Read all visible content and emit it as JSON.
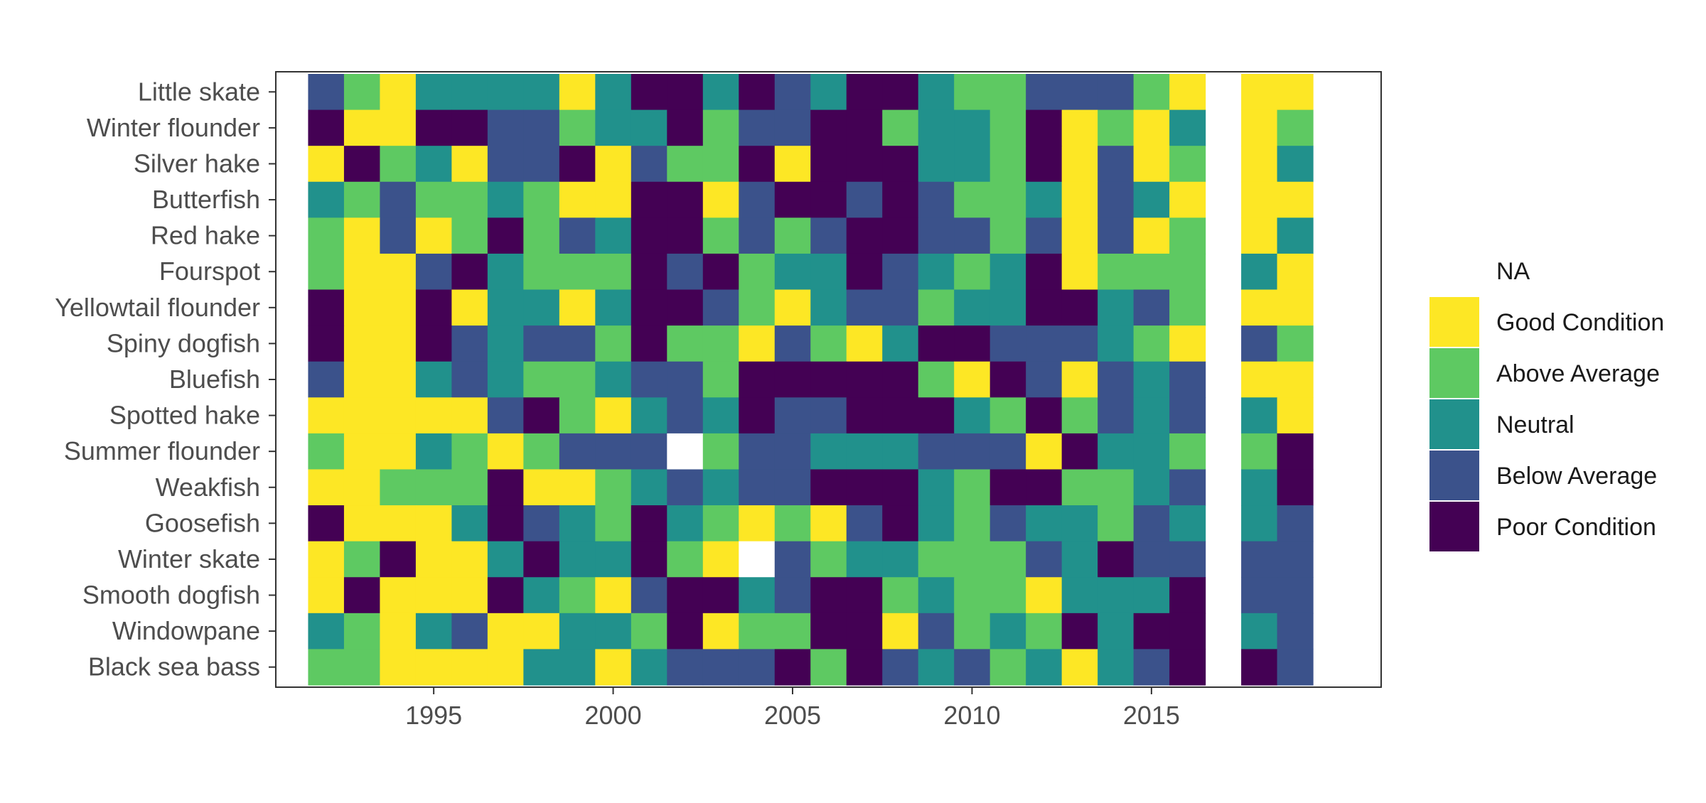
{
  "chart_data": {
    "type": "heatmap",
    "title": "",
    "xlabel": "",
    "ylabel": "",
    "x_ticks": [
      1995,
      2000,
      2005,
      2010,
      2015
    ],
    "x": [
      1992,
      1993,
      1994,
      1995,
      1996,
      1997,
      1998,
      1999,
      2000,
      2001,
      2002,
      2003,
      2004,
      2005,
      2006,
      2007,
      2008,
      2009,
      2010,
      2011,
      2012,
      2013,
      2014,
      2015,
      2016,
      2017,
      2018,
      2019
    ],
    "xlim": [
      1990.6,
      2021.4
    ],
    "species": [
      "Little skate",
      "Winter flounder",
      "Silver hake",
      "Butterfish",
      "Red hake",
      "Fourspot",
      "Yellowtail flounder",
      "Spiny dogfish",
      "Bluefish",
      "Spotted hake",
      "Summer flounder",
      "Weakfish",
      "Goosefish",
      "Winter skate",
      "Smooth dogfish",
      "Windowpane",
      "Black sea bass"
    ],
    "category_key": {
      "G": "Good Condition",
      "A": "Above Average",
      "N": "Neutral",
      "B": "Below Average",
      "P": "Poor Condition",
      "X": "NA",
      "-": "no data"
    },
    "rows": [
      "BAGNNNNGNPPNPBNPPNAABBBAG-GG",
      "PGGPPBBANNPABBPPANNAPGAGN-GA",
      "GPANGBBPGBAAPGPPPNNAPGBGA-GN",
      "NABAANAGGPPGBPPBPBAANGBNG-GG",
      "AGBGAPABNPPABABPPBBABGBGA-GN",
      "AGGBPNAAAPBPANNPBNANPGAAA-NG",
      "PGGPGNNGNPPBAGNBBANNPPNBA-GG",
      "PGGPBNBBAPAAGBAGNPPBBBNAG-BA",
      "BGGNBNAANBBAPPPPPAGPBGBNB-GG",
      "GGGGGBPAGNBNPBBPPPNAPABNB-NG",
      "AGGNAGABBBXABBNNNBBBGPNNA-AP",
      "GGAAAPGGANBNBBPPPNAPPAANB-NP",
      "PGGGNPBNAPNAGAGBPNABNNABN-NB",
      "GAPGGNPNNPAGXBANNAAABNPBB-BB",
      "GPGGGPNAGBPPNBPPANAAGNNNP-BB",
      "NAGNBGGNNAPGAAPPGBANAPNPP-NB",
      "AAGGGGNNGNBBBPAPBNBANGNBP-PB"
    ],
    "legend": [
      {
        "key": "X",
        "label": "NA",
        "color": "#ffffff"
      },
      {
        "key": "G",
        "label": "Good Condition",
        "color": "#fde725"
      },
      {
        "key": "A",
        "label": "Above Average",
        "color": "#5ec962"
      },
      {
        "key": "N",
        "label": "Neutral",
        "color": "#21918c"
      },
      {
        "key": "B",
        "label": "Below Average",
        "color": "#3b528b"
      },
      {
        "key": "P",
        "label": "Poor Condition",
        "color": "#440154"
      }
    ],
    "legend_position": "right",
    "grid": false
  }
}
